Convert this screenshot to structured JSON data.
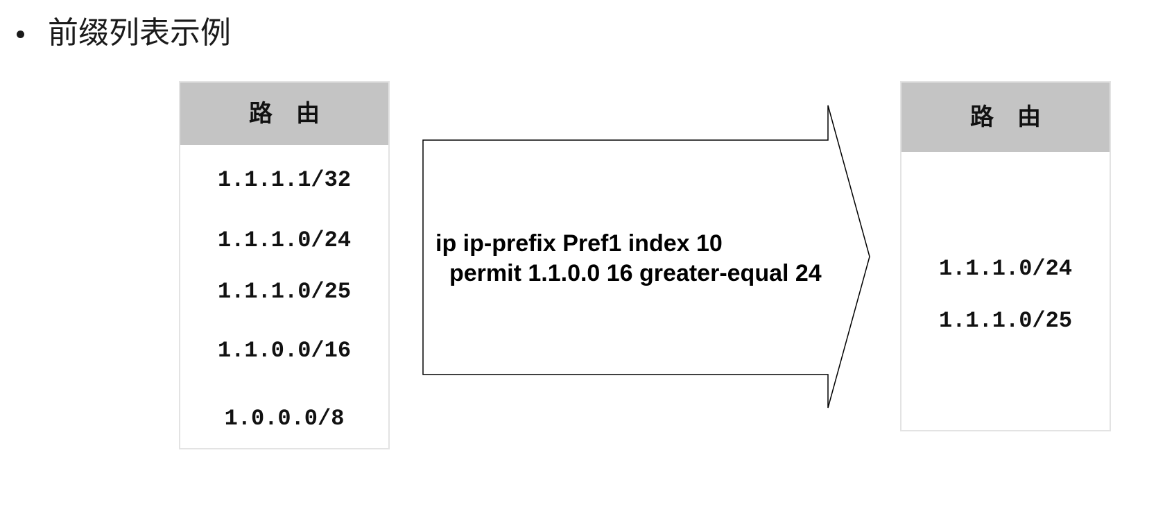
{
  "title": "前缀列表示例",
  "left_table": {
    "header": "路　由",
    "routes": [
      "1.1.1.1/32",
      "1.1.1.0/24",
      "1.1.1.0/25",
      "1.1.0.0/16",
      "1.0.0.0/8"
    ]
  },
  "filter": {
    "line1": "ip ip-prefix Pref1 index 10",
    "line2": "permit 1.1.0.0 16 greater-equal 24"
  },
  "right_table": {
    "header": "路　由",
    "routes": [
      "1.1.1.0/24",
      "1.1.1.0/25"
    ]
  }
}
